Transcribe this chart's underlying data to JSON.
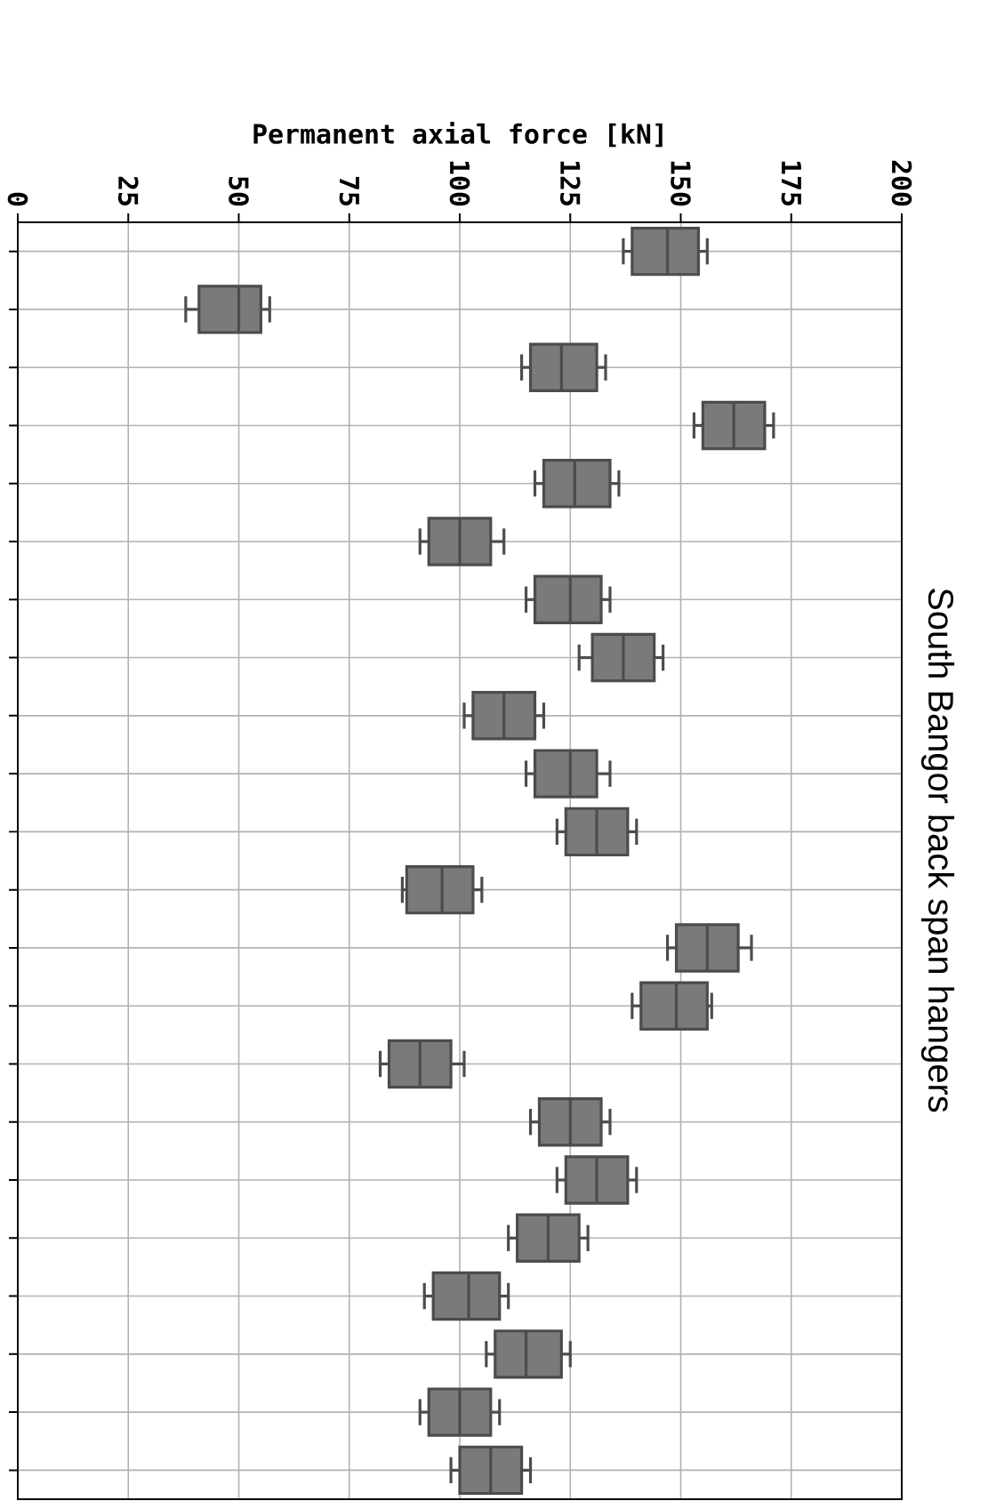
{
  "chart_data": {
    "type": "box",
    "title": "South Bangor back span hangers",
    "xlabel": "Permanent axial force [kN]",
    "orientation": "horizontal",
    "categories": [
      null,
      null,
      null,
      null,
      null,
      null,
      null,
      null,
      null,
      null,
      null,
      null,
      null,
      null,
      null,
      null,
      null,
      null,
      null,
      null,
      null,
      null
    ],
    "boxes": [
      {
        "low": 137,
        "q1": 139,
        "median": 147,
        "q3": 154,
        "high": 156
      },
      {
        "low": 38,
        "q1": 41,
        "median": 50,
        "q3": 55,
        "high": 57
      },
      {
        "low": 114,
        "q1": 116,
        "median": 123,
        "q3": 131,
        "high": 133
      },
      {
        "low": 153,
        "q1": 155,
        "median": 162,
        "q3": 169,
        "high": 171
      },
      {
        "low": 117,
        "q1": 119,
        "median": 126,
        "q3": 134,
        "high": 136
      },
      {
        "low": 91,
        "q1": 93,
        "median": 100,
        "q3": 107,
        "high": 110
      },
      {
        "low": 115,
        "q1": 117,
        "median": 125,
        "q3": 132,
        "high": 134
      },
      {
        "low": 127,
        "q1": 130,
        "median": 137,
        "q3": 144,
        "high": 146
      },
      {
        "low": 101,
        "q1": 103,
        "median": 110,
        "q3": 117,
        "high": 119
      },
      {
        "low": 115,
        "q1": 117,
        "median": 125,
        "q3": 131,
        "high": 134
      },
      {
        "low": 122,
        "q1": 124,
        "median": 131,
        "q3": 138,
        "high": 140
      },
      {
        "low": 87,
        "q1": 88,
        "median": 96,
        "q3": 103,
        "high": 105
      },
      {
        "low": 147,
        "q1": 149,
        "median": 156,
        "q3": 163,
        "high": 166
      },
      {
        "low": 139,
        "q1": 141,
        "median": 149,
        "q3": 156,
        "high": 157
      },
      {
        "low": 82,
        "q1": 84,
        "median": 91,
        "q3": 98,
        "high": 101
      },
      {
        "low": 116,
        "q1": 118,
        "median": 125,
        "q3": 132,
        "high": 134
      },
      {
        "low": 122,
        "q1": 124,
        "median": 131,
        "q3": 138,
        "high": 140
      },
      {
        "low": 111,
        "q1": 113,
        "median": 120,
        "q3": 127,
        "high": 129
      },
      {
        "low": 92,
        "q1": 94,
        "median": 102,
        "q3": 109,
        "high": 111
      },
      {
        "low": 106,
        "q1": 108,
        "median": 115,
        "q3": 123,
        "high": 125
      },
      {
        "low": 91,
        "q1": 93,
        "median": 100,
        "q3": 107,
        "high": 109
      },
      {
        "low": 98,
        "q1": 100,
        "median": 107,
        "q3": 114,
        "high": 116
      }
    ],
    "color": "#7a7a7a",
    "xlim": [
      0,
      200
    ],
    "xticks": [
      0,
      25,
      50,
      75,
      100,
      125,
      150,
      175,
      200
    ],
    "grid": true,
    "tick_labels": "x"
  }
}
